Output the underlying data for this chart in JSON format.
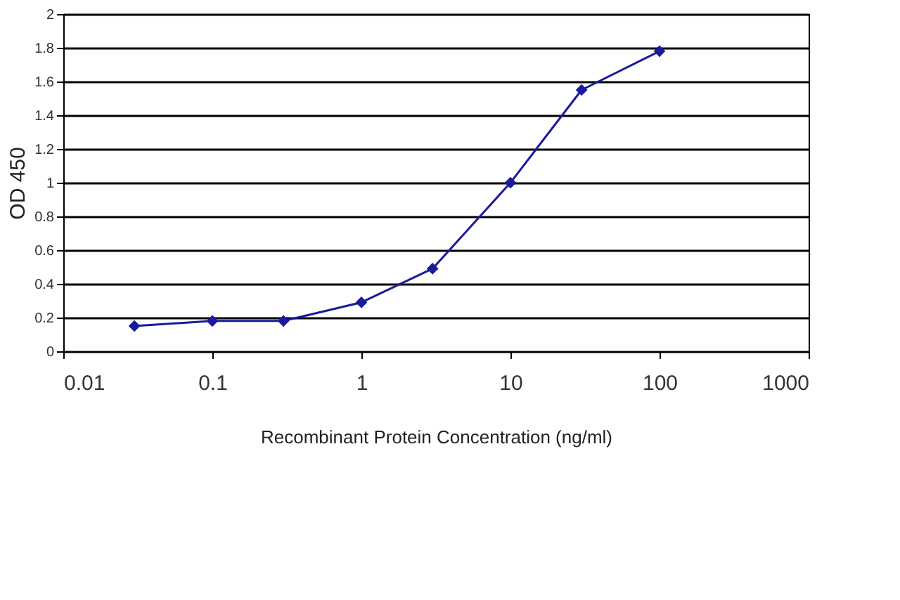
{
  "chart_data": {
    "type": "line",
    "xlabel": "Recombinant Protein Concentration (ng/ml)",
    "ylabel": "OD 450",
    "x": [
      0.03,
      0.1,
      0.3,
      1,
      3,
      10,
      30,
      100
    ],
    "series": [
      {
        "color": "#1a1a9c",
        "values": [
          0.15,
          0.18,
          0.18,
          0.29,
          0.49,
          1.0,
          1.55,
          1.78
        ]
      }
    ],
    "log": "x",
    "xlim": [
      0.01,
      1000
    ],
    "xticks": [
      0.01,
      0.1,
      1,
      10,
      100,
      1000
    ],
    "ylim": [
      0,
      2
    ],
    "yticks": [
      0,
      0.2,
      0.4,
      0.6,
      0.8,
      1,
      1.2,
      1.4,
      1.6,
      1.8,
      2
    ],
    "grid": "y",
    "marker": "diamond",
    "line_style": "solid",
    "legend": false
  }
}
